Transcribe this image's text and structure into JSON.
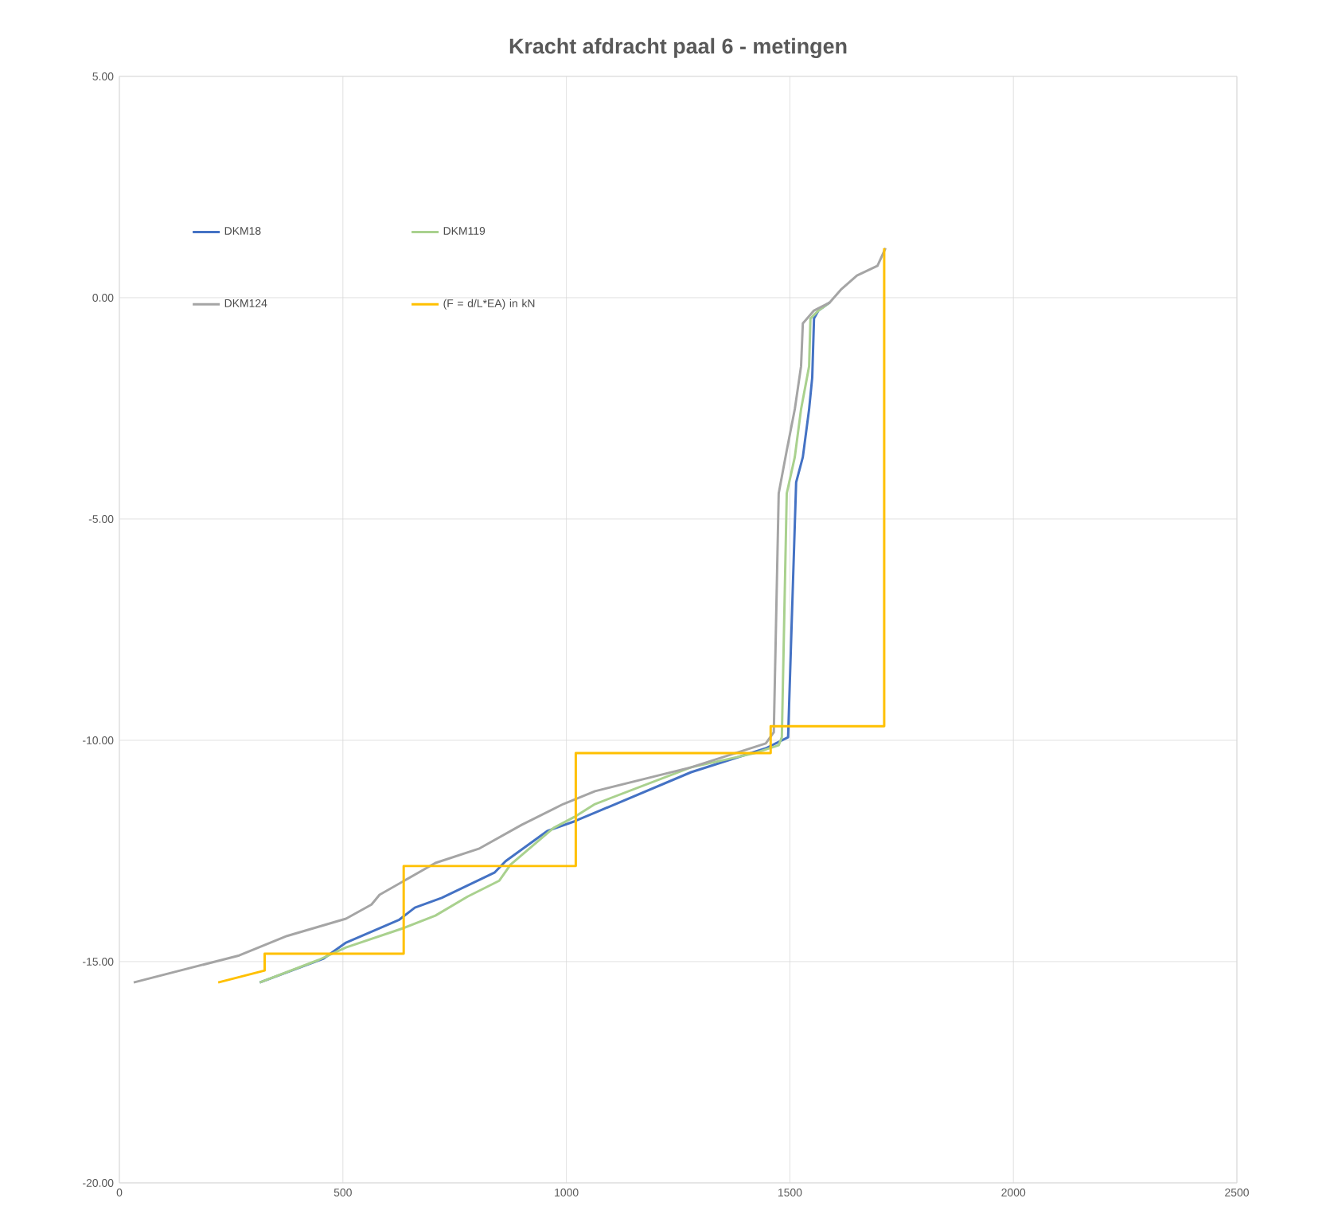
{
  "chart_data": {
    "type": "line",
    "title": "Kracht afdracht paal 6 - metingen",
    "xlim": [
      0,
      2500
    ],
    "ylim": [
      -20,
      5
    ],
    "xticks": [
      0,
      500,
      1000,
      1500,
      2000,
      2500
    ],
    "yticks": [
      {
        "value": -20,
        "label": "-20.00"
      },
      {
        "value": -15,
        "label": "-15.00"
      },
      {
        "value": -10,
        "label": "-10.00"
      },
      {
        "value": -5,
        "label": "-5.00"
      },
      {
        "value": 0,
        "label": "0.00"
      },
      {
        "value": 5,
        "label": "5.00"
      }
    ],
    "grid": true,
    "legend": "top left",
    "marker": "none",
    "line_style": "solid",
    "series": [
      {
        "name": "DKM18",
        "color": "#4472c4",
        "x": [
          314,
          457,
          507,
          625,
          661,
          721,
          839,
          864,
          957,
          1018,
          1279,
          1446,
          1496,
          1514,
          1529,
          1543,
          1550,
          1554,
          1564,
          1589
        ],
        "values": [
          -15.47,
          -14.93,
          -14.57,
          -14.06,
          -13.78,
          -13.56,
          -12.99,
          -12.73,
          -12.05,
          -11.83,
          -10.72,
          -10.18,
          -9.93,
          -4.17,
          -3.6,
          -2.52,
          -1.8,
          -0.47,
          -0.29,
          -0.11
        ]
      },
      {
        "name": "DKM119",
        "color": "#a9d18e",
        "x": [
          314,
          446,
          507,
          636,
          707,
          779,
          850,
          875,
          971,
          1018,
          1064,
          1279,
          1421,
          1475,
          1482,
          1493,
          1511,
          1525,
          1543,
          1546,
          1564,
          1589
        ],
        "values": [
          -15.47,
          -14.96,
          -14.68,
          -14.24,
          -13.96,
          -13.53,
          -13.17,
          -12.81,
          -11.98,
          -11.73,
          -11.44,
          -10.61,
          -10.29,
          -10.11,
          -9.93,
          -4.42,
          -3.6,
          -2.52,
          -1.55,
          -0.47,
          -0.29,
          -0.11
        ]
      },
      {
        "name": "DKM124",
        "color": "#a5a5a5",
        "x": [
          32,
          268,
          375,
          507,
          564,
          582,
          707,
          804,
          900,
          993,
          1064,
          1279,
          1446,
          1464,
          1475,
          1493,
          1511,
          1525,
          1529,
          1554,
          1589,
          1614,
          1650,
          1696,
          1714
        ],
        "values": [
          -15.47,
          -14.86,
          -14.42,
          -14.03,
          -13.71,
          -13.49,
          -12.77,
          -12.45,
          -11.91,
          -11.44,
          -11.15,
          -10.61,
          -10.07,
          -9.82,
          -4.42,
          -3.45,
          -2.52,
          -1.55,
          -0.58,
          -0.29,
          -0.11,
          0.18,
          0.5,
          0.72,
          1.12
        ]
      },
      {
        "name": "(F = d/L*EA) in kN",
        "color": "#ffc000",
        "x": [
          221,
          325,
          325,
          636,
          636,
          1021,
          1021,
          1457,
          1457,
          1711,
          1711
        ],
        "values": [
          -15.47,
          -15.2,
          -14.82,
          -14.82,
          -12.84,
          -12.84,
          -10.29,
          -10.29,
          -9.68,
          -9.68,
          1.12
        ]
      }
    ]
  }
}
